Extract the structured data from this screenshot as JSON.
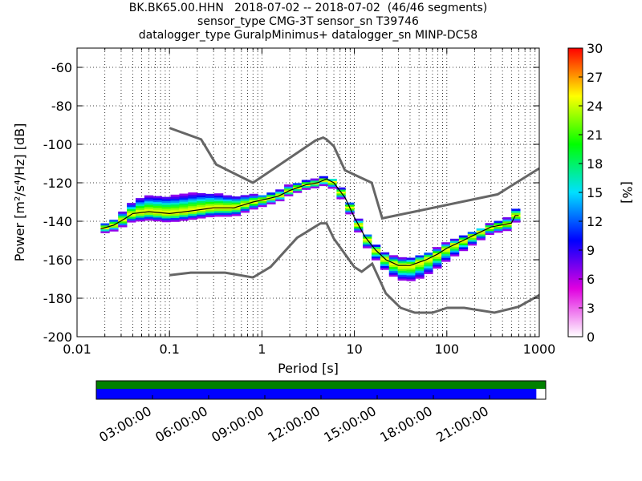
{
  "titles": {
    "line1": "BK.BK65.00.HHN   2018-07-02 -- 2018-07-02  (46/46 segments)",
    "line2": "sensor_type CMG-3T sensor_sn T39746",
    "line3": "datalogger_type GuralpMinimus+ datalogger_sn MINP-DC58"
  },
  "chart_data": [
    {
      "type": "heatmap",
      "title": "",
      "xlabel": "Period [s]",
      "ylabel": "Power [m²/s⁴/Hz] [dB]",
      "xscale": "log",
      "xlim": [
        0.01,
        1000
      ],
      "ylim": [
        -200,
        -50
      ],
      "x_tick_labels": [
        "0.01",
        "0.1",
        "1",
        "10",
        "100",
        "1000"
      ],
      "y_tick_labels": [
        "-60",
        "-80",
        "-100",
        "-120",
        "-140",
        "-160",
        "-180",
        "-200"
      ],
      "y_ticks": [
        -60,
        -80,
        -100,
        -120,
        -140,
        -160,
        -180,
        -200
      ],
      "grid": true,
      "colorbar": {
        "label": "[%]",
        "range": [
          0,
          30
        ],
        "tick_labels": [
          "0",
          "3",
          "6",
          "9",
          "12",
          "15",
          "18",
          "21",
          "24",
          "27",
          "30"
        ],
        "colors": [
          "#ffffff",
          "#e000e0",
          "#0000ff",
          "#00e0ff",
          "#00ff00",
          "#ffff00",
          "#ff0000"
        ]
      },
      "noise_models": {
        "high_noise_model": {
          "periods": [
            0.1,
            0.22,
            0.32,
            0.8,
            3.8,
            4.6,
            5.0,
            6.0,
            7.9,
            15.4,
            20.0,
            354.8,
            1000
          ],
          "power": [
            -91.5,
            -97.4,
            -110.5,
            -120.0,
            -98.0,
            -96.5,
            -97.5,
            -101.0,
            -113.5,
            -120.0,
            -138.5,
            -126.0,
            -112.5
          ]
        },
        "low_noise_model": {
          "periods": [
            0.1,
            0.17,
            0.4,
            0.8,
            1.24,
            2.4,
            4.3,
            5.0,
            6.0,
            10.0,
            12.0,
            15.6,
            21.9,
            31.6,
            45.0,
            70.0,
            101.0,
            154.0,
            328.0,
            600.0,
            1000
          ],
          "power": [
            -168.0,
            -166.7,
            -166.7,
            -169.2,
            -163.7,
            -148.6,
            -141.1,
            -141.1,
            -149.0,
            -163.8,
            -166.2,
            -162.1,
            -177.5,
            -185.0,
            -187.5,
            -187.5,
            -185.0,
            -185.0,
            -187.5,
            -184.4,
            -178.4
          ]
        }
      },
      "mean_psd": {
        "periods": [
          0.018,
          0.025,
          0.032,
          0.04,
          0.06,
          0.1,
          0.15,
          0.3,
          0.5,
          0.8,
          1.0,
          1.5,
          2.0,
          3.0,
          4.0,
          5.0,
          6.0,
          8.0,
          10.0,
          13.0,
          17.0,
          22.0,
          30.0,
          40.0,
          60.0,
          80.0,
          100.0,
          150.0,
          200.0,
          300.0,
          500.0,
          550.0,
          600.0
        ],
        "power": [
          -144,
          -142,
          -139,
          -136,
          -135,
          -136,
          -135,
          -133,
          -133,
          -130,
          -129,
          -127,
          -124,
          -121,
          -120,
          -118,
          -120,
          -128,
          -138,
          -148,
          -155,
          -160,
          -163,
          -163,
          -160,
          -157,
          -154,
          -150,
          -147,
          -143,
          -141,
          -137,
          -137
        ]
      },
      "density_mode_spread_db": {
        "periods": [
          0.018,
          0.03,
          0.05,
          0.1,
          0.2,
          0.5,
          1.0,
          2.0,
          4.0,
          6.0,
          10.0,
          20.0,
          30.0,
          50.0,
          100.0,
          300.0,
          600.0
        ],
        "spread_up": [
          2,
          4,
          8,
          9,
          9,
          6,
          3,
          3,
          2,
          2,
          3,
          3,
          4,
          4,
          3,
          2,
          4
        ],
        "spread_down": [
          2,
          3,
          4,
          4,
          4,
          4,
          3,
          2,
          2,
          3,
          3,
          5,
          7,
          8,
          6,
          3,
          3
        ]
      }
    },
    {
      "type": "timeline",
      "x_tick_labels": [
        "03:00:00",
        "06:00:00",
        "09:00:00",
        "12:00:00",
        "15:00:00",
        "18:00:00",
        "21:00:00"
      ],
      "x_ticks_hours": [
        3,
        6,
        9,
        12,
        15,
        18,
        21
      ],
      "xlim_hours": [
        0,
        24
      ],
      "bars": [
        {
          "color": "#008000",
          "start_hour": 0,
          "end_hour": 24
        },
        {
          "color": "#0000ff",
          "start_hour": 0,
          "end_hour": 23.5
        }
      ]
    }
  ]
}
